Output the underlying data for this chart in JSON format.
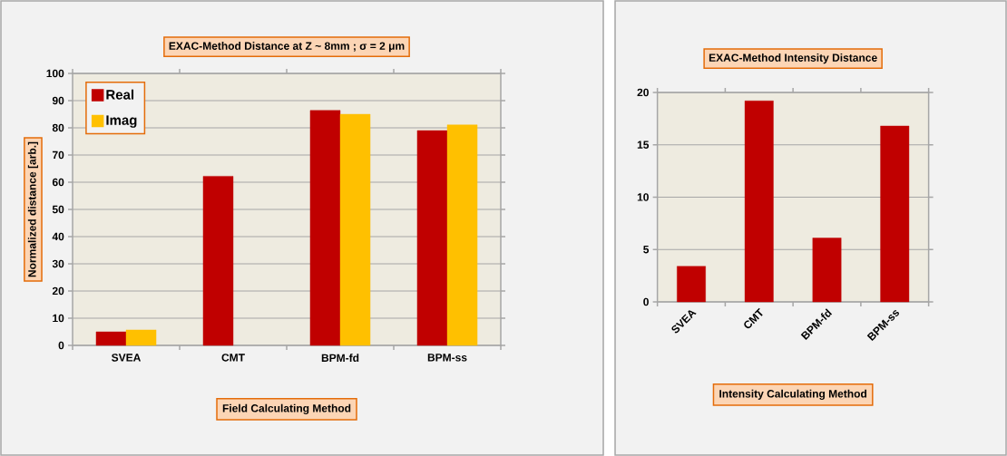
{
  "chart_data": [
    {
      "type": "bar",
      "title": "EXAC-Method Distance at Z ~ 8mm ; σ = 2 μm",
      "xlabel": "Field Calculating Method",
      "ylabel": "Normalized distance [arb.]",
      "categories": [
        "SVEA",
        "CMT",
        "BPM-fd",
        "BPM-ss"
      ],
      "series": [
        {
          "name": "Real",
          "color": "#c00000",
          "values": [
            5.0,
            62.2,
            86.4,
            79.0
          ]
        },
        {
          "name": "Imag",
          "color": "#ffc000",
          "values": [
            5.7,
            null,
            85.0,
            81.1
          ]
        }
      ],
      "ylim": [
        0,
        100
      ],
      "yticks": [
        0,
        10,
        20,
        30,
        40,
        50,
        60,
        70,
        80,
        90,
        100
      ],
      "grid": "y",
      "legend": "top left"
    },
    {
      "type": "bar",
      "title": "EXAC-Method Intensity  Distance",
      "xlabel": "Intensity Calculating Method",
      "categories": [
        "SVEA",
        "CMT",
        "BPM-fd",
        "BPM-ss"
      ],
      "series": [
        {
          "color": "#c00000",
          "values": [
            3.4,
            19.2,
            6.1,
            16.8
          ]
        }
      ],
      "ylim": [
        0,
        20
      ],
      "yticks": [
        0,
        5,
        10,
        15,
        20
      ],
      "grid": "y"
    }
  ]
}
